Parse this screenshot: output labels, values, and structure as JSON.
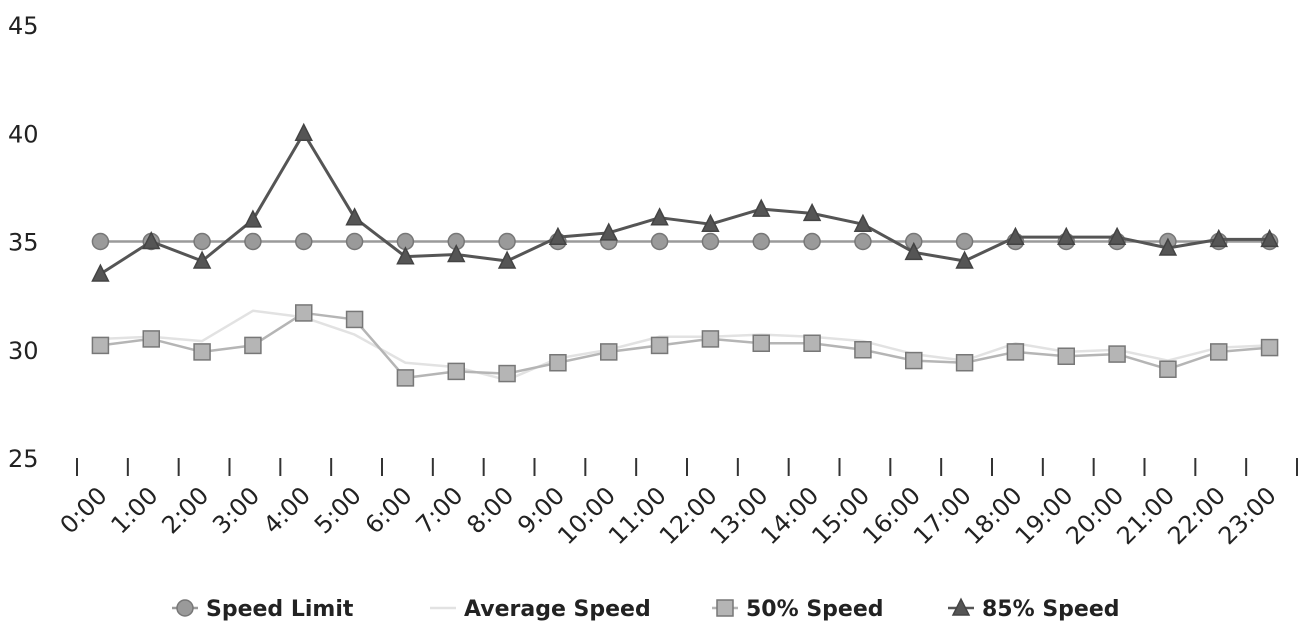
{
  "chart_data": {
    "type": "line",
    "title": "",
    "xlabel": "",
    "ylabel": "",
    "ylim": [
      25,
      45
    ],
    "y_ticks": [
      25,
      30,
      35,
      40,
      45
    ],
    "grid": false,
    "legend_position": "bottom",
    "x": [
      "0:00",
      "1:00",
      "2:00",
      "3:00",
      "4:00",
      "5:00",
      "6:00",
      "7:00",
      "8:00",
      "9:00",
      "10:00",
      "11:00",
      "12:00",
      "13:00",
      "14:00",
      "15:00",
      "16:00",
      "17:00",
      "18:00",
      "19:00",
      "20:00",
      "21:00",
      "22:00",
      "23:00"
    ],
    "series": [
      {
        "name": "Speed Limit",
        "marker": "circle",
        "color": "#9a9a9a",
        "values": [
          35,
          35,
          35,
          35,
          35,
          35,
          35,
          35,
          35,
          35,
          35,
          35,
          35,
          35,
          35,
          35,
          35,
          35,
          35,
          35,
          35,
          35,
          35,
          35
        ]
      },
      {
        "name": "Average Speed",
        "marker": "none",
        "color": "#e2e2e2",
        "values": [
          30.5,
          30.6,
          30.4,
          31.8,
          31.5,
          30.7,
          29.4,
          29.2,
          28.6,
          29.6,
          30.0,
          30.6,
          30.6,
          30.7,
          30.6,
          30.4,
          29.8,
          29.5,
          30.3,
          29.9,
          30.0,
          29.5,
          30.1,
          30.2
        ]
      },
      {
        "name": "50% Speed",
        "marker": "square",
        "color": "#b5b5b5",
        "values": [
          30.2,
          30.5,
          29.9,
          30.2,
          31.7,
          31.4,
          28.7,
          29.0,
          28.9,
          29.4,
          29.9,
          30.2,
          30.5,
          30.3,
          30.3,
          30.0,
          29.5,
          29.4,
          29.9,
          29.7,
          29.8,
          29.1,
          29.9,
          30.1
        ]
      },
      {
        "name": "85% Speed",
        "marker": "triangle",
        "color": "#555555",
        "values": [
          33.5,
          35.0,
          34.1,
          36.0,
          40.0,
          36.1,
          34.3,
          34.4,
          34.1,
          35.2,
          35.4,
          36.1,
          35.8,
          36.5,
          36.3,
          35.8,
          34.5,
          34.1,
          35.2,
          35.2,
          35.2,
          34.7,
          35.1,
          35.1
        ]
      }
    ]
  },
  "colors": {
    "axis": "#333333",
    "text": "#222222"
  }
}
